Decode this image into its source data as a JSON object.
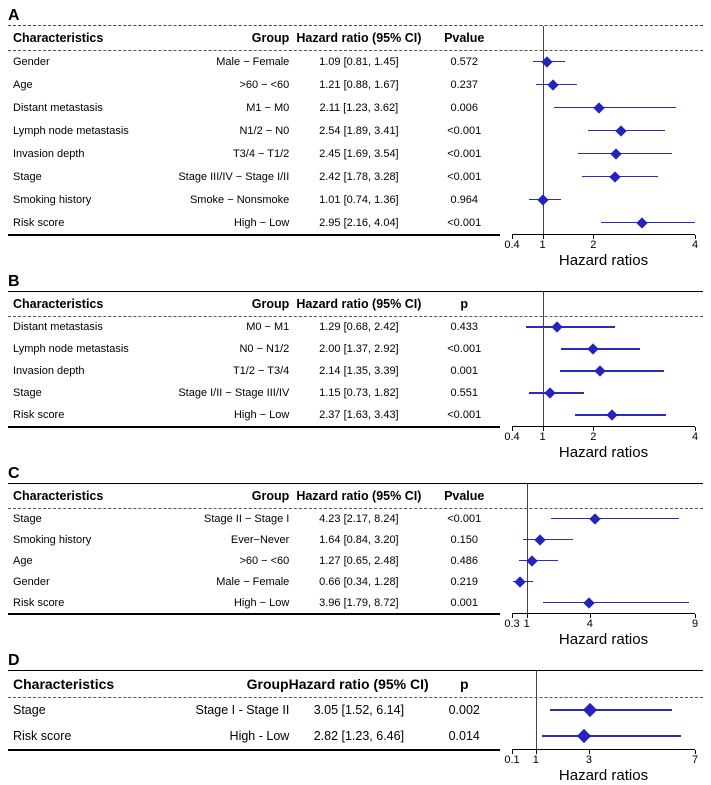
{
  "style": {
    "marker_color": "#2323bd",
    "ci_color": "#2a2ac0",
    "text_color": "#000000"
  },
  "chart_data": [
    {
      "type": "forest",
      "panel_label": "A",
      "columns": {
        "characteristic": "Characteristics",
        "group": "Group",
        "hr": "Hazard ratio (95% CI)",
        "p": "Pvalue"
      },
      "rows": [
        {
          "characteristic": "Gender",
          "group": "Male − Female",
          "hr_text": "1.09 [0.81, 1.45]",
          "p": "0.572",
          "hr": 1.09,
          "lo": 0.81,
          "hi": 1.45
        },
        {
          "characteristic": "Age",
          "group": ">60 − <60",
          "hr_text": "1.21 [0.88, 1.67]",
          "p": "0.237",
          "hr": 1.21,
          "lo": 0.88,
          "hi": 1.67
        },
        {
          "characteristic": "Distant metastasis",
          "group": "M1 − M0",
          "hr_text": "2.11 [1.23, 3.62]",
          "p": "0.006",
          "hr": 2.11,
          "lo": 1.23,
          "hi": 3.62
        },
        {
          "characteristic": "Lymph node metastasis",
          "group": "N1/2 − N0",
          "hr_text": "2.54 [1.89, 3.41]",
          "p": "<0.001",
          "hr": 2.54,
          "lo": 1.89,
          "hi": 3.41
        },
        {
          "characteristic": "Invasion depth",
          "group": "T3/4 − T1/2",
          "hr_text": "2.45 [1.69, 3.54]",
          "p": "<0.001",
          "hr": 2.45,
          "lo": 1.69,
          "hi": 3.54
        },
        {
          "characteristic": "Stage",
          "group": "Stage III/IV − Stage I/II",
          "hr_text": "2.42 [1.78, 3.28]",
          "p": "<0.001",
          "hr": 2.42,
          "lo": 1.78,
          "hi": 3.28
        },
        {
          "characteristic": "Smoking history",
          "group": "Smoke − Nonsmoke",
          "hr_text": "1.01 [0.74, 1.36]",
          "p": "0.964",
          "hr": 1.01,
          "lo": 0.74,
          "hi": 1.36
        },
        {
          "characteristic": "Risk score",
          "group": "High − Low",
          "hr_text": "2.95 [2.16, 4.04]",
          "p": "<0.001",
          "hr": 2.95,
          "lo": 2.16,
          "hi": 4.04
        }
      ],
      "axis": {
        "scale": "linear",
        "min": 0.4,
        "max": 4,
        "ref": 1,
        "ticks": [
          0.4,
          1,
          2,
          4
        ],
        "title": "Hazard ratios"
      }
    },
    {
      "type": "forest",
      "panel_label": "B",
      "columns": {
        "characteristic": "Characteristics",
        "group": "Group",
        "hr": "Hazard ratio (95% CI)",
        "p": "p"
      },
      "rows": [
        {
          "characteristic": "Distant metastasis",
          "group": "M0 − M1",
          "hr_text": "1.29 [0.68, 2.42]",
          "p": "0.433",
          "hr": 1.29,
          "lo": 0.68,
          "hi": 2.42
        },
        {
          "characteristic": "Lymph node metastasis",
          "group": "N0 − N1/2",
          "hr_text": "2.00 [1.37, 2.92]",
          "p": "<0.001",
          "hr": 2.0,
          "lo": 1.37,
          "hi": 2.92
        },
        {
          "characteristic": "Invasion depth",
          "group": "T1/2 − T3/4",
          "hr_text": "2.14 [1.35, 3.39]",
          "p": "0.001",
          "hr": 2.14,
          "lo": 1.35,
          "hi": 3.39
        },
        {
          "characteristic": "Stage",
          "group": "Stage I/II − Stage III/IV",
          "hr_text": "1.15 [0.73, 1.82]",
          "p": "0.551",
          "hr": 1.15,
          "lo": 0.73,
          "hi": 1.82
        },
        {
          "characteristic": "Risk score",
          "group": "High − Low",
          "hr_text": "2.37 [1.63, 3.43]",
          "p": "<0.001",
          "hr": 2.37,
          "lo": 1.63,
          "hi": 3.43
        }
      ],
      "axis": {
        "scale": "linear",
        "min": 0.4,
        "max": 4,
        "ref": 1,
        "ticks": [
          0.4,
          1,
          2,
          4
        ],
        "title": "Hazard ratios"
      }
    },
    {
      "type": "forest",
      "panel_label": "C",
      "columns": {
        "characteristic": "Characteristics",
        "group": "Group",
        "hr": "Hazard ratio (95% CI)",
        "p": "Pvalue"
      },
      "rows": [
        {
          "characteristic": "Stage",
          "group": "Stage II − Stage I",
          "hr_text": "4.23 [2.17, 8.24]",
          "p": "<0.001",
          "hr": 4.23,
          "lo": 2.17,
          "hi": 8.24
        },
        {
          "characteristic": "Smoking history",
          "group": "Ever−Never",
          "hr_text": "1.64 [0.84, 3.20]",
          "p": "0.150",
          "hr": 1.64,
          "lo": 0.84,
          "hi": 3.2
        },
        {
          "characteristic": "Age",
          "group": ">60 − <60",
          "hr_text": "1.27 [0.65, 2.48]",
          "p": "0.486",
          "hr": 1.27,
          "lo": 0.65,
          "hi": 2.48
        },
        {
          "characteristic": "Gender",
          "group": "Male − Female",
          "hr_text": "0.66 [0.34, 1.28]",
          "p": "0.219",
          "hr": 0.66,
          "lo": 0.34,
          "hi": 1.28
        },
        {
          "characteristic": "Risk score",
          "group": "High − Low",
          "hr_text": "3.96 [1.79, 8.72]",
          "p": "0.001",
          "hr": 3.96,
          "lo": 1.79,
          "hi": 8.72
        }
      ],
      "axis": {
        "scale": "linear",
        "min": 0.3,
        "max": 9,
        "ref": 1,
        "ticks": [
          0.3,
          1,
          4,
          9
        ],
        "title": "Hazard ratios"
      }
    },
    {
      "type": "forest",
      "panel_label": "D",
      "columns": {
        "characteristic": "Characteristics",
        "group": "Group",
        "hr": "Hazard ratio (95% CI)",
        "p": "p"
      },
      "rows": [
        {
          "characteristic": "Stage",
          "group": "Stage I - Stage II",
          "hr_text": "3.05 [1.52, 6.14]",
          "p": "0.002",
          "hr": 3.05,
          "lo": 1.52,
          "hi": 6.14
        },
        {
          "characteristic": "Risk score",
          "group": "High - Low",
          "hr_text": "2.82 [1.23, 6.46]",
          "p": "0.014",
          "hr": 2.82,
          "lo": 1.23,
          "hi": 6.46
        }
      ],
      "axis": {
        "scale": "linear",
        "min": 0.1,
        "max": 7,
        "ref": 1,
        "ticks": [
          0.1,
          1,
          3,
          7
        ],
        "title": "Hazard ratios"
      }
    }
  ]
}
